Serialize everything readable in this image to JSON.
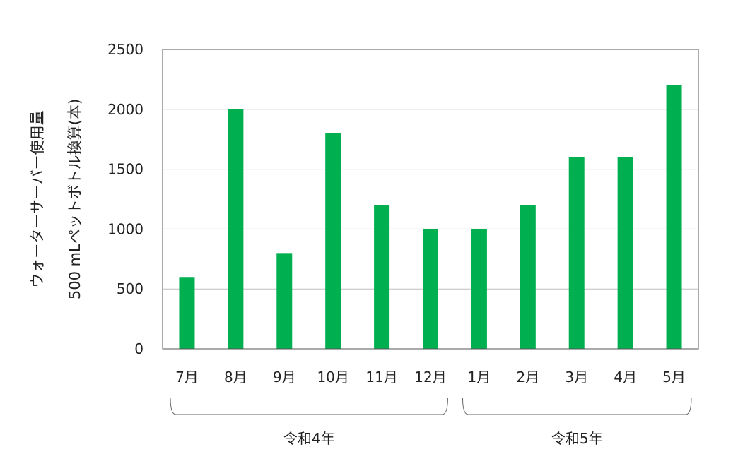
{
  "chart_data": {
    "type": "bar",
    "title": "",
    "ylabel_line1": "ウォーターサーバー使用量",
    "ylabel_line2": "500 mLペットボトル換算(本)",
    "categories": [
      "7月",
      "8月",
      "9月",
      "10月",
      "11月",
      "12月",
      "1月",
      "2月",
      "3月",
      "4月",
      "5月"
    ],
    "values": [
      600,
      2000,
      800,
      1800,
      1200,
      1000,
      1000,
      1200,
      1600,
      1600,
      2200
    ],
    "ylim": [
      0,
      2500
    ],
    "yticks": [
      "0",
      "500",
      "1000",
      "1500",
      "2000",
      "2500"
    ],
    "grid": true,
    "bar_color": "#00b050",
    "groups": [
      {
        "label": "令和4年",
        "first": 0,
        "last": 5
      },
      {
        "label": "令和5年",
        "first": 6,
        "last": 10
      }
    ]
  }
}
